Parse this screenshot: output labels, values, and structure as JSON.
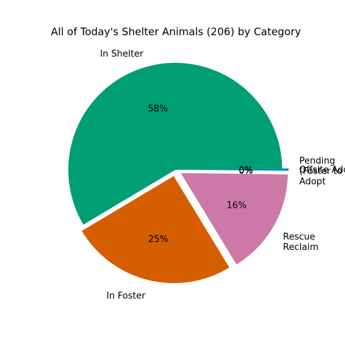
{
  "chart_data": {
    "type": "pie",
    "title": "All of Today's Shelter Animals (206) by Category",
    "slices": [
      {
        "label": "Offsite Adopt",
        "value": 0.2,
        "pct_text": "0%",
        "color": "#0072B2",
        "explode": 0.06,
        "label_lines": [
          "Offsite Adopt"
        ]
      },
      {
        "label": "In Shelter",
        "value": 58,
        "pct_text": "58%",
        "color": "#009E73",
        "explode": 0.0,
        "label_lines": [
          "In Shelter"
        ]
      },
      {
        "label": "In Foster",
        "value": 25,
        "pct_text": "25%",
        "color": "#D55E00",
        "explode": 0.06,
        "label_lines": [
          "In Foster"
        ]
      },
      {
        "label": "Rescue Reclaim",
        "value": 16,
        "pct_text": "16%",
        "color": "#CC79A7",
        "explode": 0.06,
        "label_lines": [
          "Rescue",
          "Reclaim"
        ]
      },
      {
        "label": "Pending (Foster to Adopt",
        "value": 0.2,
        "pct_text": "0%",
        "color": "#56B4E9",
        "explode": 0.06,
        "label_lines": [
          "Pending",
          "(Foster to",
          "Adopt"
        ]
      }
    ]
  }
}
